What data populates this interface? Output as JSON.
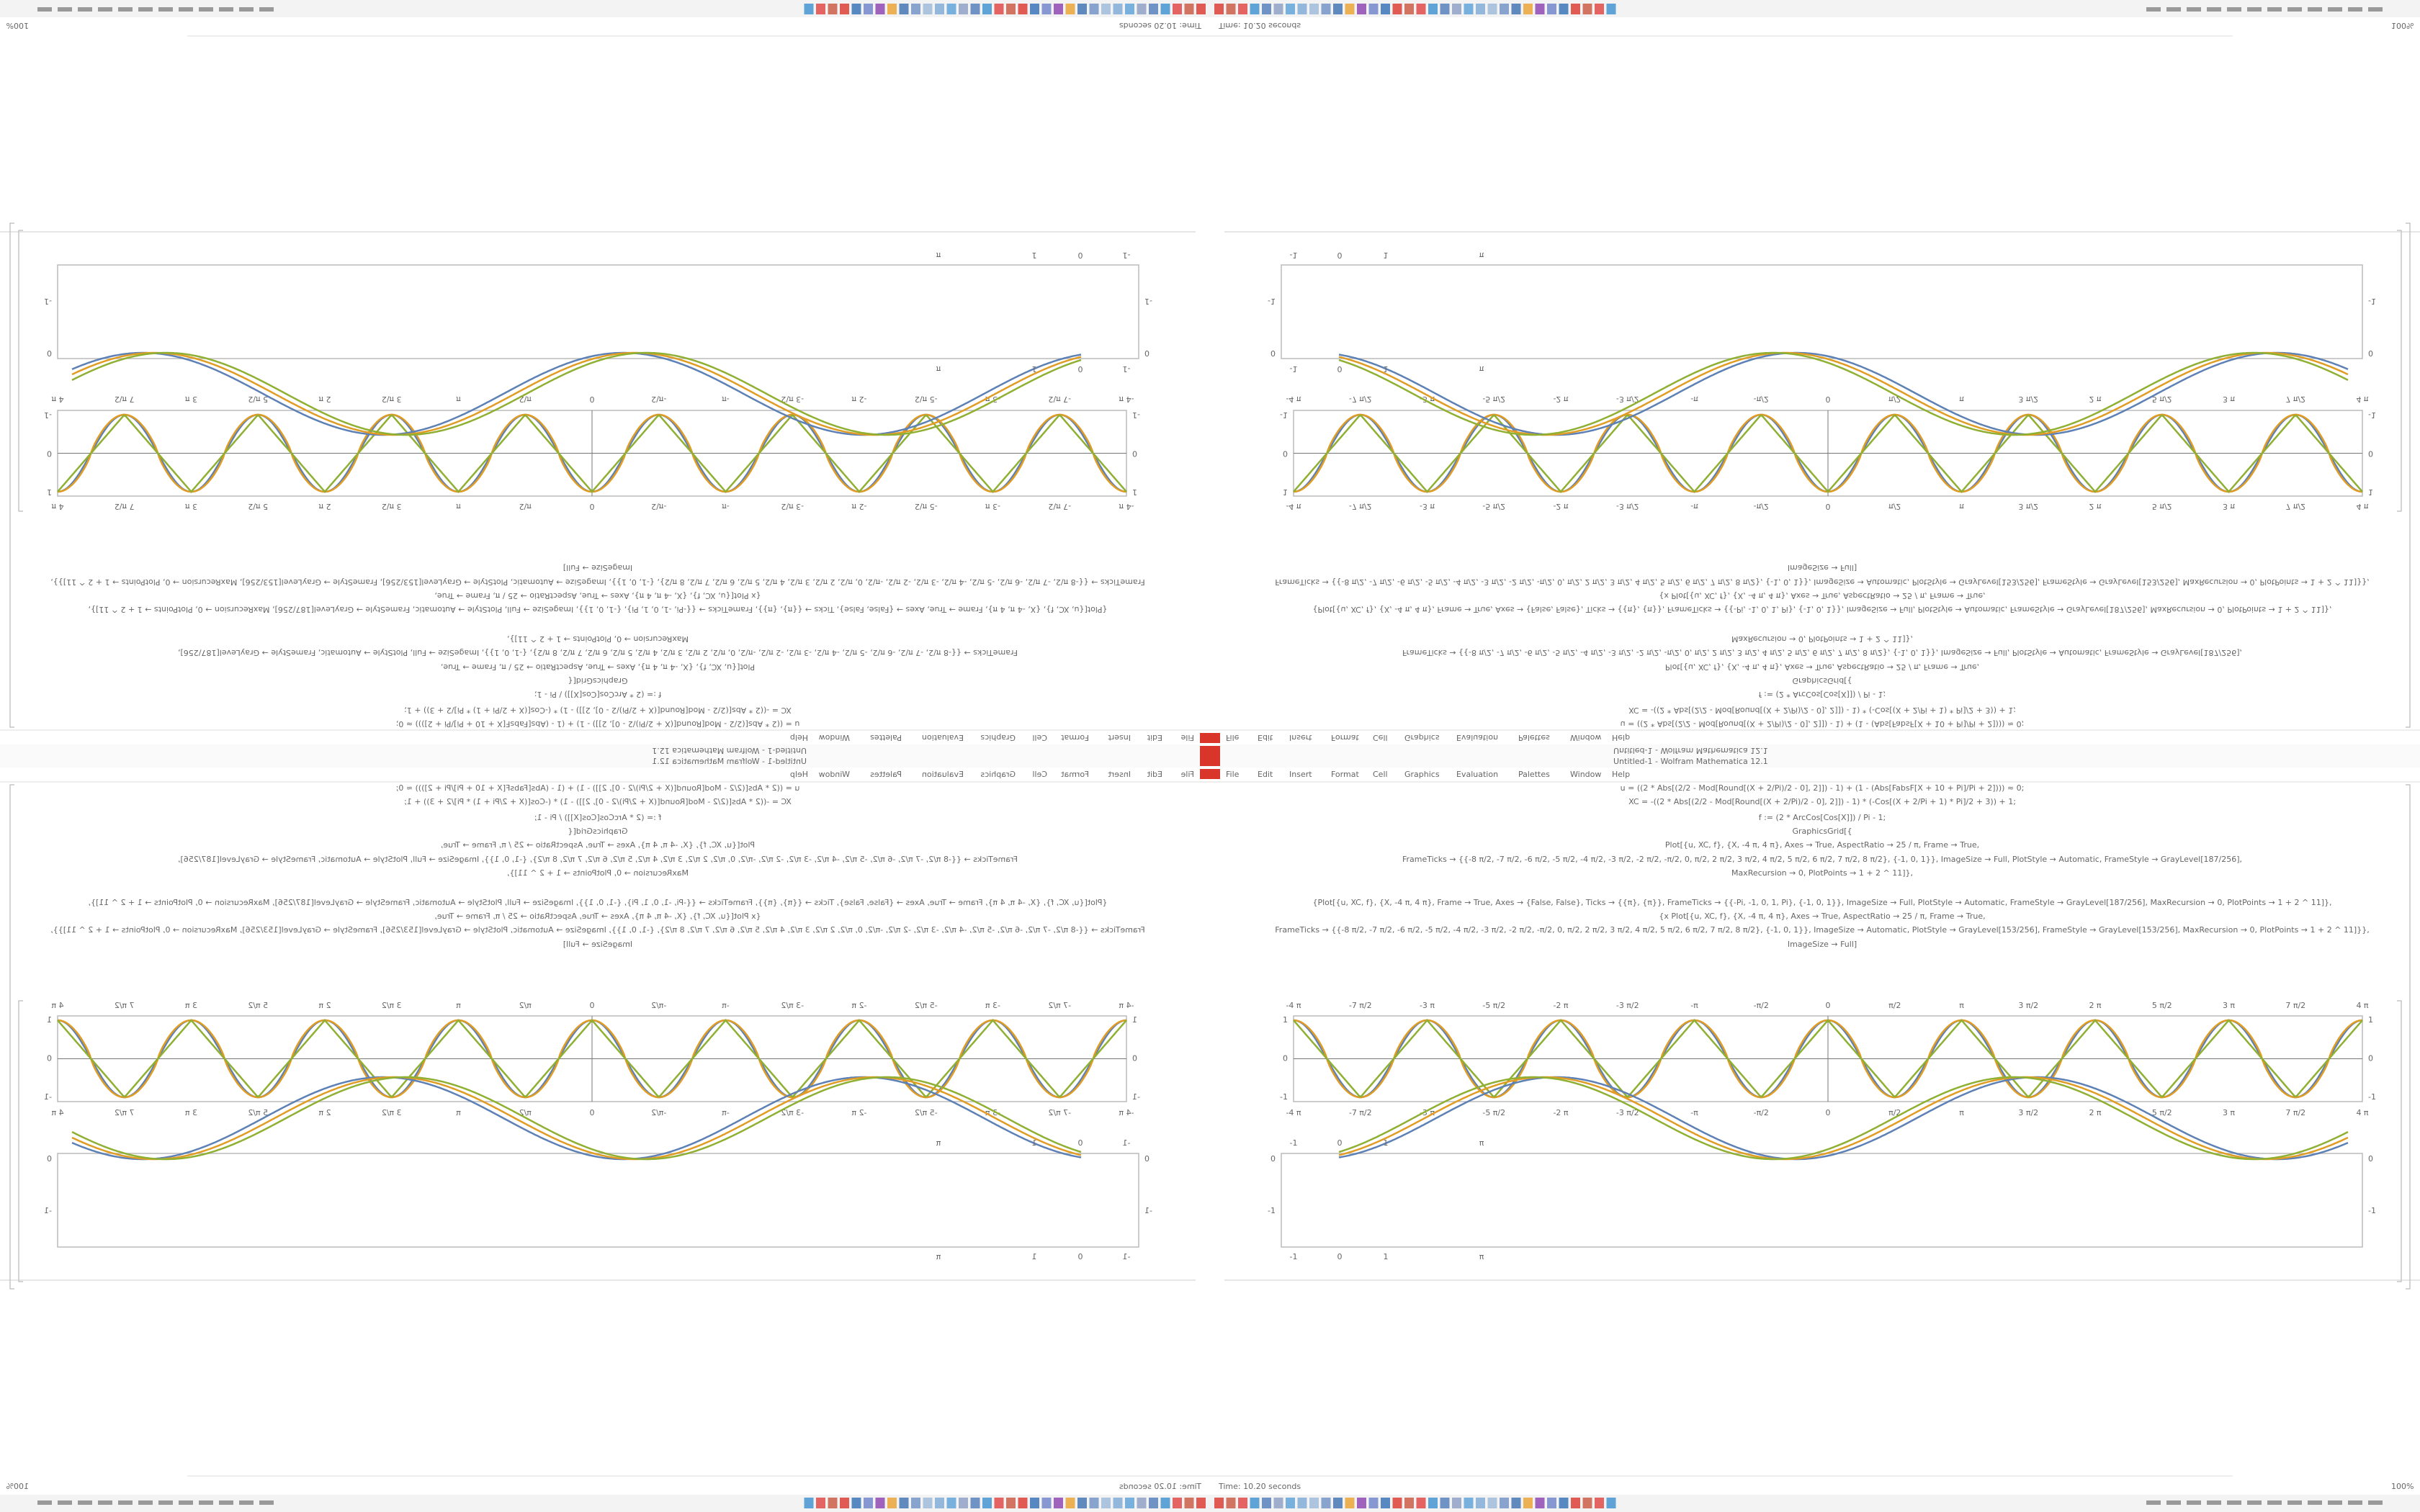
{
  "window": {
    "title": "Untitled-1 - Wolfram Mathematica 12.1",
    "menu": [
      "File",
      "Edit",
      "Insert",
      "Format",
      "Cell",
      "Graphics",
      "Evaluation",
      "Palettes",
      "Window",
      "Help"
    ],
    "status": "Time: 10.20 seconds",
    "zoom": "100%"
  },
  "code": [
    "u = ((2 * Abs[(2/2 - Mod[Round[(X + 2/Pi)/2 - 0], 2]]) - 1) + (1 - (Abs[FabsF[X + 10 + Pi]/Pi + 2]))) ≈ 0;",
    "XC = -((2 * Abs[(2/2 - Mod[Round[(X + 2/Pi)/2 - 0], 2]]) - 1) * (-Cos[(X + 2/Pi + 1) * Pi]/2 + 3)) + 1;",
    "f := (2 * ArcCos[Cos[X]]) / Pi - 1;",
    "GraphicsGrid[{",
    "Plot[{u, XC, f}, {X, -4 π, 4 π}, Axes → True, AspectRatio → 25 / π, Frame → True,",
    "FrameTicks → {{-8 π/2, -7 π/2, -6 π/2, -5 π/2, -4 π/2, -3 π/2, -2 π/2, -π/2, 0, π/2, 2 π/2, 3 π/2, 4 π/2, 5 π/2, 6 π/2, 7 π/2, 8 π/2}, {-1, 0, 1}}, ImageSize → Full, PlotStyle → Automatic, FrameStyle → GrayLevel[187/256],",
    "MaxRecursion → 0, PlotPoints → 1 + 2 ^ 11]},",
    "{Plot[{u, XC, f}, {X, -4 π, 4 π}, Frame → True, Axes → {False, False}, Ticks → {{π}, {π}}, FrameTicks → {{-Pi, -1, 0, 1, Pi}, {-1, 0, 1}}, ImageSize → Full, PlotStyle → Automatic, FrameStyle → GrayLevel[187/256], MaxRecursion → 0, PlotPoints → 1 + 2 ^ 11]},",
    "{x Plot[{u, XC, f}, {X, -4 π, 4 π}, Axes → True, AspectRatio → 25 / π, Frame → True,",
    "FrameTicks → {{-8 π/2, -7 π/2, -6 π/2, -5 π/2, -4 π/2, -3 π/2, -2 π/2, -π/2, 0, π/2, 2 π/2, 3 π/2, 4 π/2, 5 π/2, 6 π/2, 7 π/2, 8 π/2}, {-1, 0, 1}}, ImageSize → Automatic, PlotStyle → GrayLevel[153/256], FrameStyle → GrayLevel[153/256], MaxRecursion → 0, PlotPoints → 1 + 2 ^ 11]}},",
    "ImageSize → Full]"
  ],
  "plot1": {
    "xticks": [
      "-4 π",
      "-7 π/2",
      "-3 π",
      "-5 π/2",
      "-2 π",
      "-3 π/2",
      "-π",
      "-π/2",
      "0",
      "π/2",
      "π",
      "3 π/2",
      "2 π",
      "5 π/2",
      "3 π",
      "7 π/2",
      "4 π"
    ],
    "yticks": [
      "1",
      "0",
      "-1"
    ]
  },
  "plot2": {
    "xticks": [
      "-1",
      "0",
      "1",
      "π"
    ],
    "yticks": [
      "0",
      "-1"
    ]
  }
}
